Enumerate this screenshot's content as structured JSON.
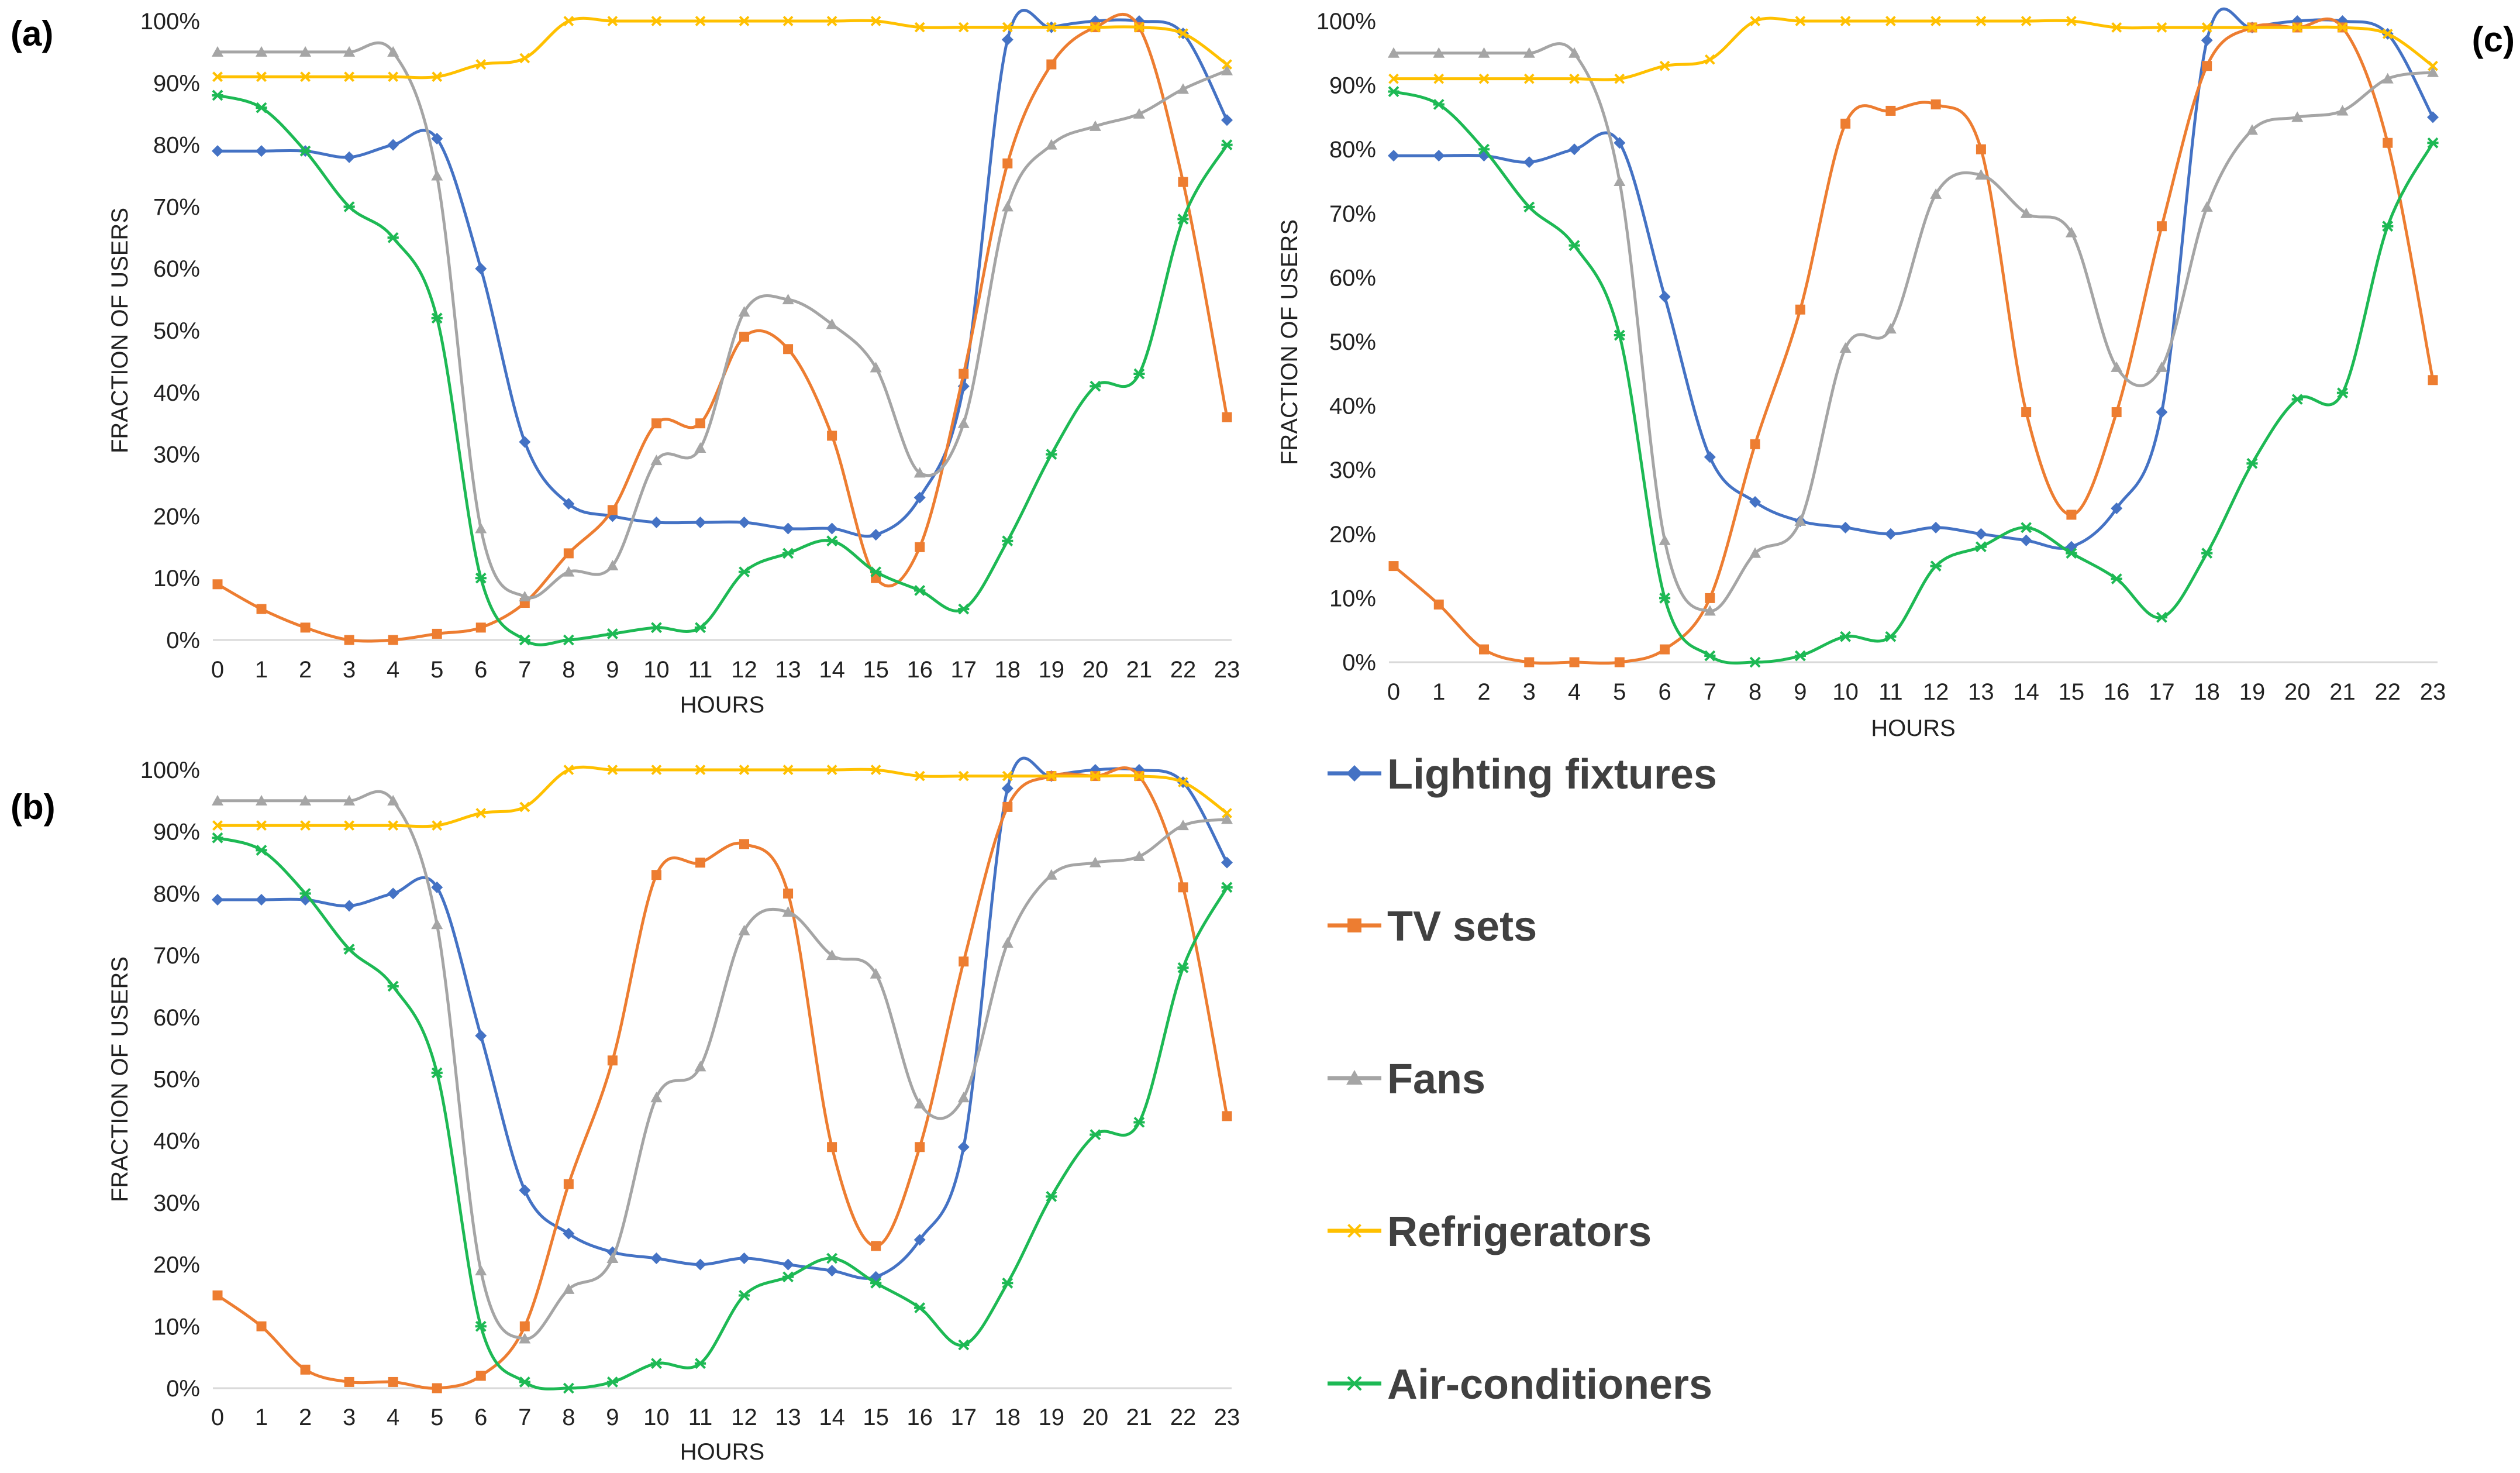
{
  "figure": {
    "legend": {
      "entries": [
        {
          "label": "Lighting fixtures",
          "series_key": "lighting"
        },
        {
          "label": "TV sets",
          "series_key": "tv"
        },
        {
          "label": "Fans",
          "series_key": "fans"
        },
        {
          "label": "Refrigerators",
          "series_key": "fridge"
        },
        {
          "label": "Air-conditioners",
          "series_key": "ac"
        }
      ]
    },
    "series_styles": {
      "lighting": {
        "color": "#4472C4",
        "marker": "diamond"
      },
      "tv": {
        "color": "#ED7D31",
        "marker": "square"
      },
      "fans": {
        "color": "#A5A5A5",
        "marker": "triangle"
      },
      "fridge": {
        "color": "#FFC000",
        "marker": "x"
      },
      "ac": {
        "color": "#1DB954",
        "marker": "star"
      }
    }
  },
  "chart_data": [
    {
      "panel_label": "(a)",
      "type": "line",
      "xlabel": "HOURS",
      "ylabel": "FRACTION OF USERS",
      "ylim": [
        0,
        100
      ],
      "y_ticks": [
        "0%",
        "10%",
        "20%",
        "30%",
        "40%",
        "50%",
        "60%",
        "70%",
        "80%",
        "90%",
        "100%"
      ],
      "x": [
        0,
        1,
        2,
        3,
        4,
        5,
        6,
        7,
        8,
        9,
        10,
        11,
        12,
        13,
        14,
        15,
        16,
        17,
        18,
        19,
        20,
        21,
        22,
        23
      ],
      "series": [
        {
          "key": "lighting",
          "name": "Lighting fixtures",
          "values": [
            79,
            79,
            79,
            78,
            80,
            81,
            60,
            32,
            22,
            20,
            19,
            19,
            19,
            18,
            18,
            17,
            23,
            41,
            97,
            99,
            100,
            100,
            98,
            84
          ]
        },
        {
          "key": "tv",
          "name": "TV sets",
          "values": [
            9,
            5,
            2,
            0,
            0,
            1,
            2,
            6,
            14,
            21,
            35,
            35,
            49,
            47,
            33,
            10,
            15,
            43,
            77,
            93,
            99,
            99,
            74,
            36
          ]
        },
        {
          "key": "fans",
          "name": "Fans",
          "values": [
            95,
            95,
            95,
            95,
            95,
            75,
            18,
            7,
            11,
            12,
            29,
            31,
            53,
            55,
            51,
            44,
            27,
            35,
            70,
            80,
            83,
            85,
            89,
            92
          ]
        },
        {
          "key": "fridge",
          "name": "Refrigerators",
          "values": [
            91,
            91,
            91,
            91,
            91,
            91,
            93,
            94,
            100,
            100,
            100,
            100,
            100,
            100,
            100,
            100,
            99,
            99,
            99,
            99,
            99,
            99,
            98,
            93
          ]
        },
        {
          "key": "ac",
          "name": "Air-conditioners",
          "values": [
            88,
            86,
            79,
            70,
            65,
            52,
            10,
            0,
            0,
            1,
            2,
            2,
            11,
            14,
            16,
            11,
            8,
            5,
            16,
            30,
            41,
            43,
            68,
            80
          ]
        }
      ]
    },
    {
      "panel_label": "(b)",
      "type": "line",
      "xlabel": "HOURS",
      "ylabel": "FRACTION OF USERS",
      "ylim": [
        0,
        100
      ],
      "y_ticks": [
        "0%",
        "10%",
        "20%",
        "30%",
        "40%",
        "50%",
        "60%",
        "70%",
        "80%",
        "90%",
        "100%"
      ],
      "x": [
        0,
        1,
        2,
        3,
        4,
        5,
        6,
        7,
        8,
        9,
        10,
        11,
        12,
        13,
        14,
        15,
        16,
        17,
        18,
        19,
        20,
        21,
        22,
        23
      ],
      "series": [
        {
          "key": "lighting",
          "name": "Lighting fixtures",
          "values": [
            79,
            79,
            79,
            78,
            80,
            81,
            57,
            32,
            25,
            22,
            21,
            20,
            21,
            20,
            19,
            18,
            24,
            39,
            97,
            99,
            100,
            100,
            98,
            85
          ]
        },
        {
          "key": "tv",
          "name": "TV sets",
          "values": [
            15,
            10,
            3,
            1,
            1,
            0,
            2,
            10,
            33,
            53,
            83,
            85,
            88,
            80,
            39,
            23,
            39,
            69,
            94,
            99,
            99,
            99,
            81,
            44
          ]
        },
        {
          "key": "fans",
          "name": "Fans",
          "values": [
            95,
            95,
            95,
            95,
            95,
            75,
            19,
            8,
            16,
            21,
            47,
            52,
            74,
            77,
            70,
            67,
            46,
            47,
            72,
            83,
            85,
            86,
            91,
            92
          ]
        },
        {
          "key": "fridge",
          "name": "Refrigerators",
          "values": [
            91,
            91,
            91,
            91,
            91,
            91,
            93,
            94,
            100,
            100,
            100,
            100,
            100,
            100,
            100,
            100,
            99,
            99,
            99,
            99,
            99,
            99,
            98,
            93
          ]
        },
        {
          "key": "ac",
          "name": "Air-conditioners",
          "values": [
            89,
            87,
            80,
            71,
            65,
            51,
            10,
            1,
            0,
            1,
            4,
            4,
            15,
            18,
            21,
            17,
            13,
            7,
            17,
            31,
            41,
            43,
            68,
            81
          ]
        }
      ]
    },
    {
      "panel_label": "(c)",
      "type": "line",
      "xlabel": "HOURS",
      "ylabel": "FRACTION OF USERS",
      "ylim": [
        0,
        100
      ],
      "y_ticks": [
        "0%",
        "10%",
        "20%",
        "30%",
        "40%",
        "50%",
        "60%",
        "70%",
        "80%",
        "90%",
        "100%"
      ],
      "x": [
        0,
        1,
        2,
        3,
        4,
        5,
        6,
        7,
        8,
        9,
        10,
        11,
        12,
        13,
        14,
        15,
        16,
        17,
        18,
        19,
        20,
        21,
        22,
        23
      ],
      "series": [
        {
          "key": "lighting",
          "name": "Lighting fixtures",
          "values": [
            79,
            79,
            79,
            78,
            80,
            81,
            57,
            32,
            25,
            22,
            21,
            20,
            21,
            20,
            19,
            18,
            24,
            39,
            97,
            99,
            100,
            100,
            98,
            85
          ]
        },
        {
          "key": "tv",
          "name": "TV sets",
          "values": [
            15,
            9,
            2,
            0,
            0,
            0,
            2,
            10,
            34,
            55,
            84,
            86,
            87,
            80,
            39,
            23,
            39,
            68,
            93,
            99,
            99,
            99,
            81,
            44
          ]
        },
        {
          "key": "fans",
          "name": "Fans",
          "values": [
            95,
            95,
            95,
            95,
            95,
            75,
            19,
            8,
            17,
            22,
            49,
            52,
            73,
            76,
            70,
            67,
            46,
            46,
            71,
            83,
            85,
            86,
            91,
            92
          ]
        },
        {
          "key": "fridge",
          "name": "Refrigerators",
          "values": [
            91,
            91,
            91,
            91,
            91,
            91,
            93,
            94,
            100,
            100,
            100,
            100,
            100,
            100,
            100,
            100,
            99,
            99,
            99,
            99,
            99,
            99,
            98,
            93
          ]
        },
        {
          "key": "ac",
          "name": "Air-conditioners",
          "values": [
            89,
            87,
            80,
            71,
            65,
            51,
            10,
            1,
            0,
            1,
            4,
            4,
            15,
            18,
            21,
            17,
            13,
            7,
            17,
            31,
            41,
            42,
            68,
            81
          ]
        }
      ]
    }
  ]
}
